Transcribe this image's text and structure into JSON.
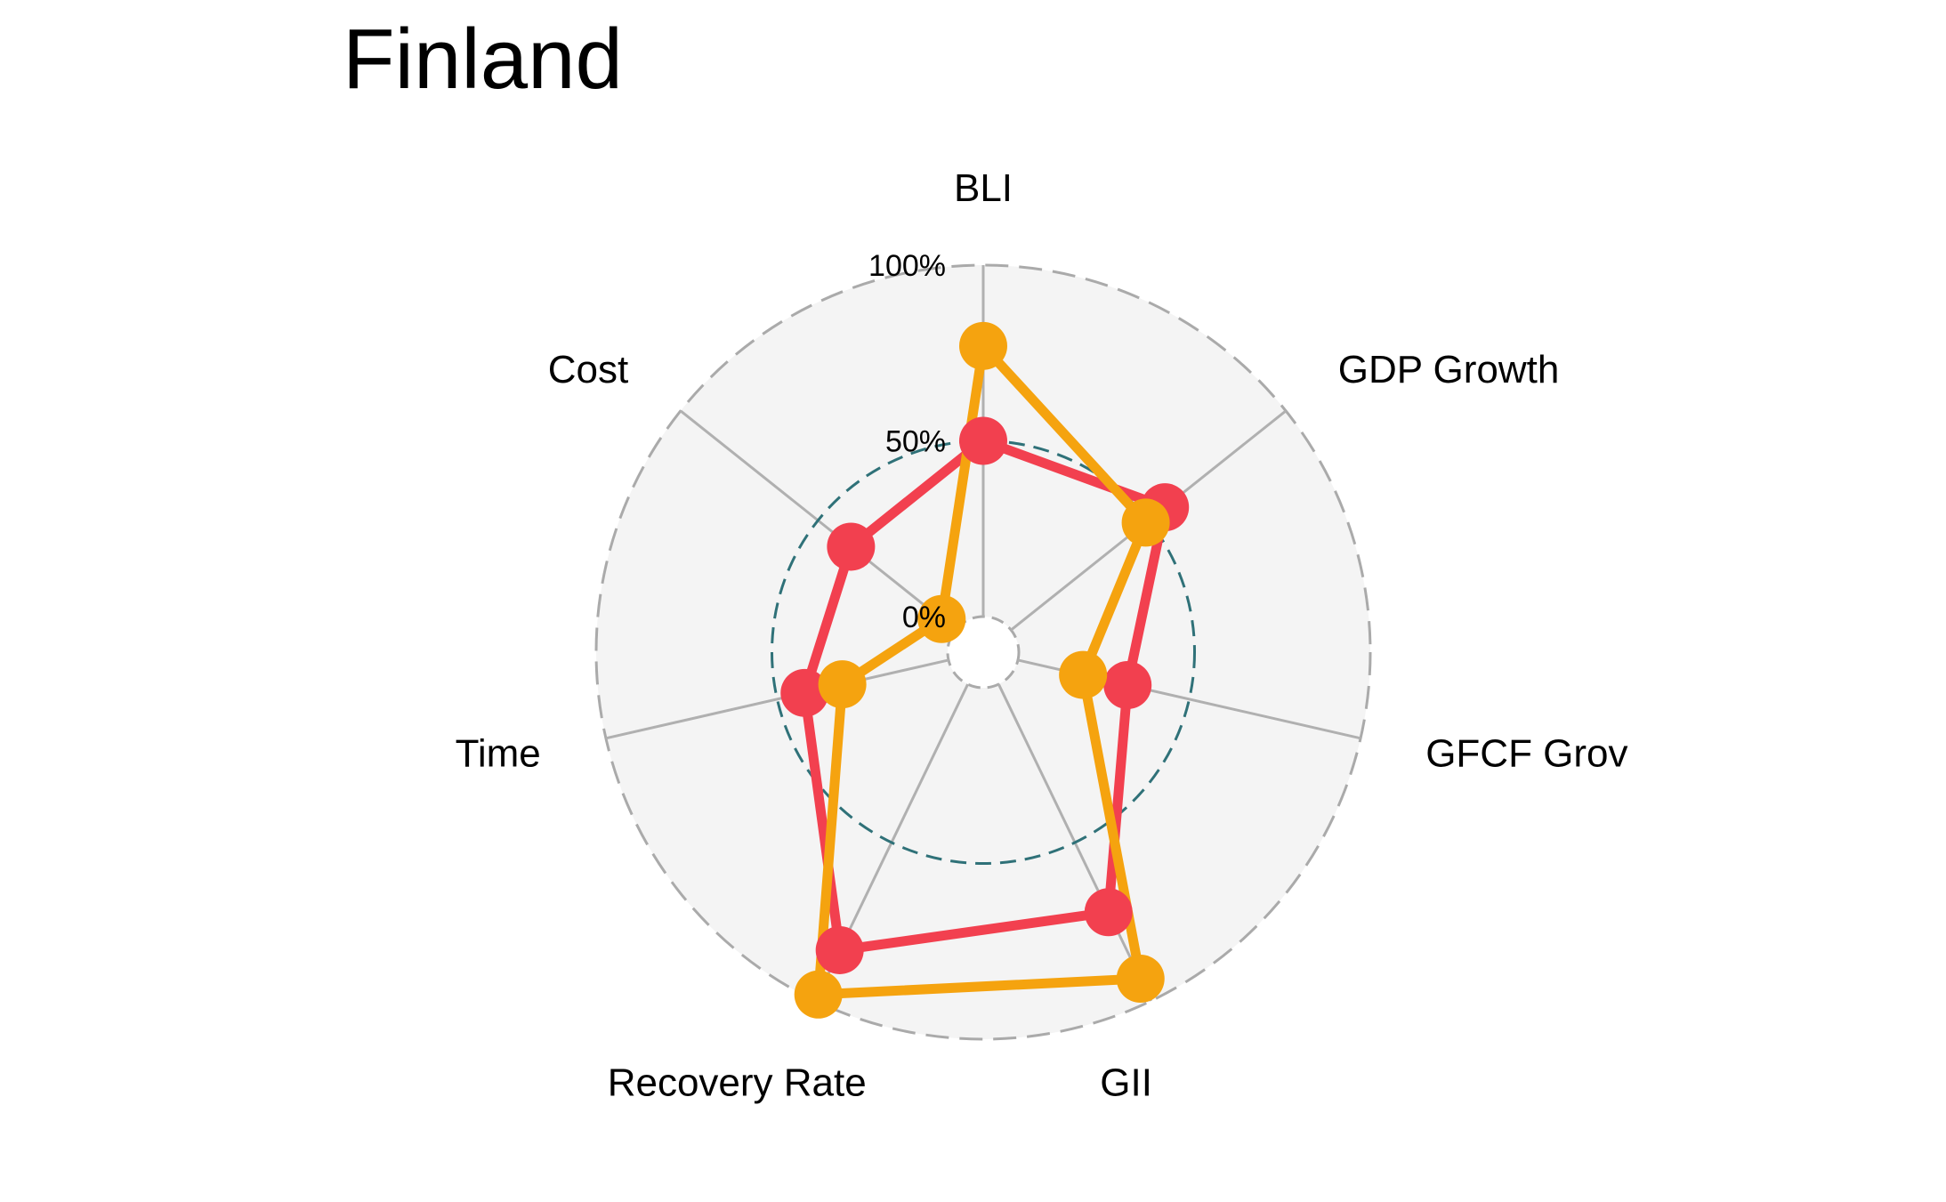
{
  "chart_data": {
    "type": "radar",
    "title": "Finland",
    "categories": [
      "BLI",
      "GDP Growth",
      "GFCF Grov",
      "GII",
      "Recovery Rate",
      "Time",
      "Cost"
    ],
    "grid_labels": [
      "0%",
      "50%",
      "100%"
    ],
    "range": [
      0,
      100
    ],
    "series": [
      {
        "values": [
          50,
          56,
          32,
          72,
          84,
          42,
          38
        ],
        "color": "#f2404f"
      },
      {
        "values": [
          77,
          49,
          19,
          93,
          98,
          31,
          5
        ],
        "color": "#f5a30f"
      }
    ],
    "colors": {
      "background_disc": "#f4f4f4",
      "outer_ring": "#aaaaaa",
      "mid_ring": "#2f7178",
      "axis_line": "#b0b0b0"
    }
  }
}
